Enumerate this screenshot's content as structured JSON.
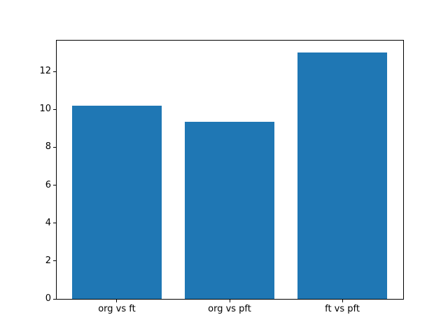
{
  "figure": {
    "background": "#ffffff"
  },
  "chart_data": {
    "type": "bar",
    "categories": [
      "org vs ft",
      "org vs pft",
      "ft vs pft"
    ],
    "values": [
      10.2,
      9.35,
      13.0
    ],
    "title": "",
    "xlabel": "",
    "ylabel": "",
    "ylim": [
      0,
      13.65
    ],
    "xlim": [
      -0.54,
      2.54
    ],
    "yticks": [
      0,
      2,
      4,
      6,
      8,
      10,
      12
    ],
    "bar_width": 0.8,
    "bar_color": "#1f77b4",
    "spine_color": "#000000",
    "tick_color": "#000000",
    "text_color": "#000000",
    "grid": false,
    "legend": null
  }
}
